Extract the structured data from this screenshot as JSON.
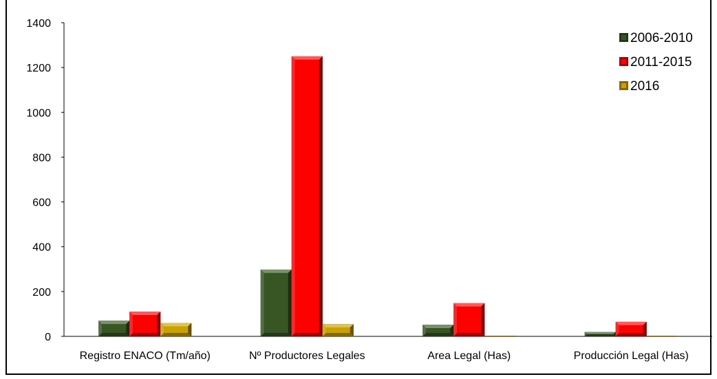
{
  "chart_data": {
    "type": "bar",
    "title": "",
    "xlabel": "",
    "ylabel": "",
    "ylim": [
      0,
      1400
    ],
    "yticks": [
      0,
      200,
      400,
      600,
      800,
      1000,
      1200,
      1400
    ],
    "grid": false,
    "legend_position": "top-right",
    "categories": [
      "Registro ENACO (Tm/año)",
      "Nº Productores Legales",
      "Area Legal (Has)",
      "Producción Legal (Has)"
    ],
    "series": [
      {
        "name": "2006-2010",
        "color": "#375623",
        "values": [
          70,
          298,
          52,
          20
        ]
      },
      {
        "name": "2011-2015",
        "color": "#ff0000",
        "values": [
          110,
          1250,
          148,
          65
        ]
      },
      {
        "name": "2016",
        "color": "#c9a100",
        "values": [
          60,
          55,
          0,
          0
        ]
      }
    ]
  }
}
